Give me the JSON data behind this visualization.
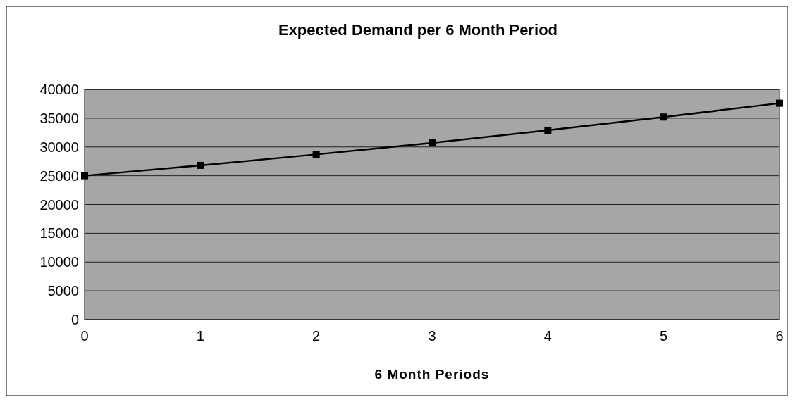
{
  "chart_data": {
    "type": "line",
    "title": "Expected Demand per 6 Month Period",
    "xlabel": "6 Month Periods",
    "x": [
      0,
      1,
      2,
      3,
      4,
      5,
      6
    ],
    "series": [
      {
        "color": "#000000",
        "values": [
          25000,
          26800,
          28700,
          30700,
          32900,
          35200,
          37600
        ]
      }
    ],
    "xlim": [
      0,
      6
    ],
    "xticks": [
      0,
      1,
      2,
      3,
      4,
      5,
      6
    ],
    "ylim": [
      0,
      40000
    ],
    "yticks": [
      0,
      5000,
      10000,
      15000,
      20000,
      25000,
      30000,
      35000,
      40000
    ],
    "grid": "y",
    "marker": "square",
    "line_style": "solid"
  }
}
